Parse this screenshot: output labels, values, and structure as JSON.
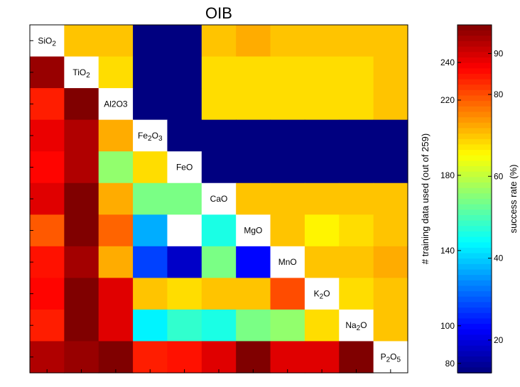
{
  "chart_data": {
    "type": "heatmap",
    "title": "OIB",
    "variables": [
      "SiO2",
      "TiO2",
      "Al2O3",
      "Fe2O3",
      "FeO",
      "CaO",
      "MgO",
      "MnO",
      "K2O",
      "Na2O",
      "P2O5"
    ],
    "diagonal_labels": [
      {
        "base": "SiO",
        "sub": "2",
        "tail": ""
      },
      {
        "base": "TiO",
        "sub": "2",
        "tail": ""
      },
      {
        "base": "Al2O3",
        "sub": "",
        "tail": ""
      },
      {
        "base": "Fe",
        "sub": "2",
        "tail": "O",
        "sub2": "3"
      },
      {
        "base": "FeO",
        "sub": "",
        "tail": ""
      },
      {
        "base": "CaO",
        "sub": "",
        "tail": ""
      },
      {
        "base": "MgO",
        "sub": "",
        "tail": ""
      },
      {
        "base": "MnO",
        "sub": "",
        "tail": ""
      },
      {
        "base": "K",
        "sub": "2",
        "tail": "O"
      },
      {
        "base": "Na",
        "sub": "2",
        "tail": "O"
      },
      {
        "base": "P",
        "sub": "2",
        "tail": "O",
        "sub2": "5"
      }
    ],
    "upper_triangle_metric": "# training data used (out of 259)",
    "lower_triangle_metric": "success rate (%)",
    "colormap": "jet",
    "color_range": [
      12,
      97
    ],
    "matrix": [
      [
        null,
        70,
        70,
        12,
        12,
        70,
        72,
        70,
        70,
        70,
        70
      ],
      [
        95,
        null,
        68,
        12,
        12,
        68,
        68,
        68,
        68,
        68,
        70
      ],
      [
        84,
        97,
        null,
        12,
        12,
        68,
        68,
        68,
        68,
        68,
        70
      ],
      [
        88,
        93,
        72,
        null,
        12,
        12,
        12,
        12,
        12,
        12,
        12
      ],
      [
        86,
        93,
        56,
        68,
        null,
        12,
        12,
        12,
        12,
        12,
        12
      ],
      [
        89,
        97,
        72,
        54,
        54,
        null,
        70,
        70,
        70,
        70,
        70
      ],
      [
        79,
        97,
        78,
        37,
        null,
        46,
        null,
        70,
        66,
        68,
        70
      ],
      [
        85,
        94,
        72,
        28,
        18,
        54,
        23,
        null,
        70,
        70,
        72
      ],
      [
        86,
        97,
        89,
        70,
        68,
        70,
        70,
        80,
        null,
        68,
        70
      ],
      [
        84,
        97,
        89,
        43,
        48,
        46,
        54,
        56,
        68,
        null,
        70
      ],
      [
        93,
        95,
        97,
        84,
        85,
        89,
        97,
        89,
        89,
        97,
        null
      ]
    ],
    "right_axis": {
      "label": "# training data used (out of 259)",
      "ticks": [
        80,
        100,
        140,
        180,
        220,
        240
      ],
      "range": [
        75,
        260
      ]
    },
    "colorbar": {
      "label": "success rate (%)",
      "ticks": [
        20,
        40,
        60,
        80,
        90
      ],
      "range": [
        12,
        97
      ]
    }
  }
}
